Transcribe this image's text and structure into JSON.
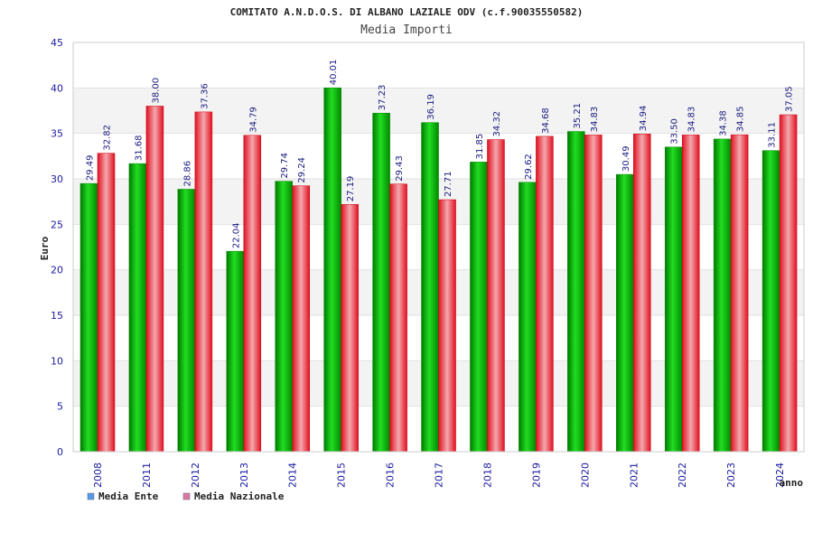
{
  "chart_data": {
    "type": "bar",
    "title": "COMITATO A.N.D.O.S. DI ALBANO LAZIALE ODV (c.f.90035550582)",
    "subtitle": "Media Importi",
    "xlabel": "anno",
    "ylabel": "Euro",
    "ylim": [
      0,
      45
    ],
    "yticks": [
      0,
      5,
      10,
      15,
      20,
      25,
      30,
      35,
      40,
      45
    ],
    "grid": true,
    "legend_position": "bottom-left",
    "categories": [
      "2008",
      "2011",
      "2012",
      "2013",
      "2014",
      "2015",
      "2016",
      "2017",
      "2018",
      "2019",
      "2020",
      "2021",
      "2022",
      "2023",
      "2024"
    ],
    "series": [
      {
        "name": "Media Ente",
        "color": "#00b000",
        "legend_color": "#5599ee",
        "values": [
          29.49,
          31.68,
          28.86,
          22.04,
          29.74,
          40.01,
          37.23,
          36.19,
          31.85,
          29.62,
          35.21,
          30.49,
          33.5,
          34.38,
          33.11
        ],
        "labels": [
          "29.49",
          "31.68",
          "28.86",
          "22.04",
          "29.74",
          "40.01",
          "37.23",
          "36.19",
          "31.85",
          "29.62",
          "35.21",
          "30.49",
          "33.50",
          "34.38",
          "33.11"
        ]
      },
      {
        "name": "Media Nazionale",
        "color": "#e8202a",
        "legend_color": "#dd77aa",
        "values": [
          32.82,
          38.0,
          37.36,
          34.79,
          29.24,
          27.19,
          29.43,
          27.71,
          34.32,
          34.68,
          34.83,
          34.94,
          34.83,
          34.85,
          37.05
        ],
        "labels": [
          "32.82",
          "38.00",
          "37.36",
          "34.79",
          "29.24",
          "27.19",
          "29.43",
          "27.71",
          "34.32",
          "34.68",
          "34.83",
          "34.94",
          "34.83",
          "34.85",
          "37.05"
        ]
      }
    ]
  }
}
